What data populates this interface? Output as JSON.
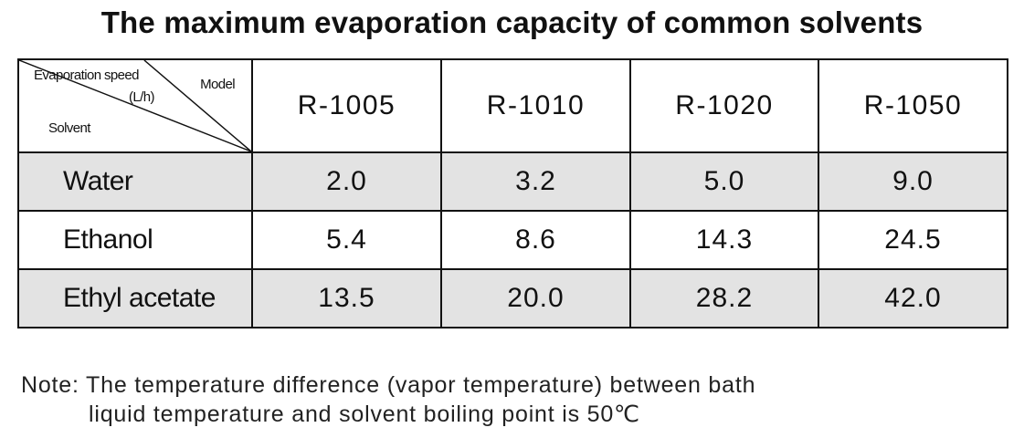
{
  "title": "The maximum evaporation capacity of common solvents",
  "header": {
    "speed_label": "Evaporation speed",
    "unit_label": "(L/h)",
    "model_label": "Model",
    "solvent_label": "Solvent",
    "models": [
      "R-1005",
      "R-1010",
      "R-1020",
      "R-1050"
    ]
  },
  "rows": [
    {
      "solvent": "Water",
      "values": [
        "2.0",
        "3.2",
        "5.0",
        "9.0"
      ]
    },
    {
      "solvent": "Ethanol",
      "values": [
        "5.4",
        "8.6",
        "14.3",
        "24.5"
      ]
    },
    {
      "solvent": "Ethyl acetate",
      "values": [
        "13.5",
        "20.0",
        "28.2",
        "42.0"
      ]
    }
  ],
  "note": {
    "line1": "Note: The temperature difference (vapor temperature) between bath",
    "line2": "liquid temperature and solvent boiling point is 50℃"
  },
  "colors": {
    "shaded_row": "#e3e3e3",
    "border": "#111111"
  }
}
